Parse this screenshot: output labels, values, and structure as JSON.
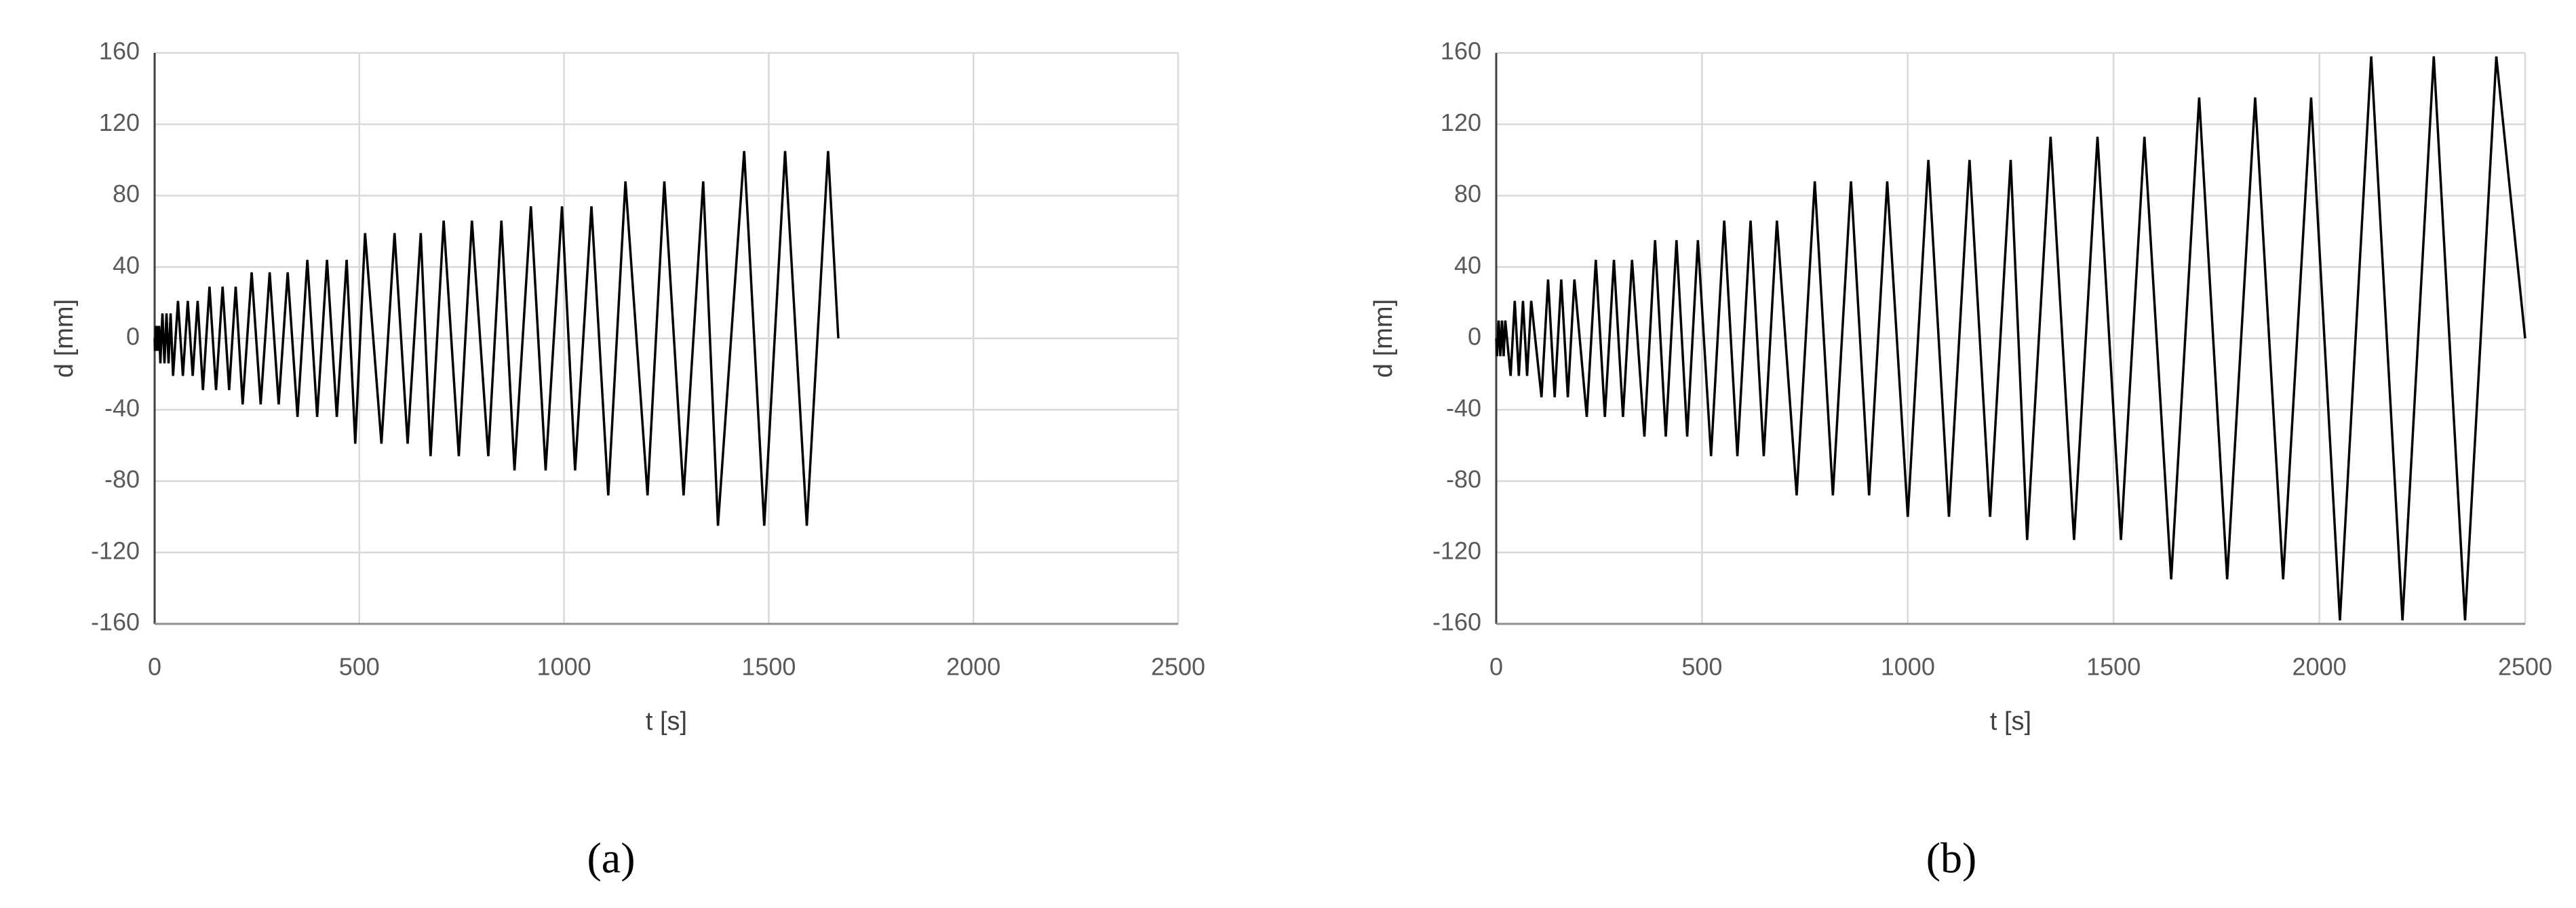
{
  "chart_data": [
    {
      "type": "line",
      "panel_label": "(a)",
      "xlabel": "t [s]",
      "ylabel": "d [mm]",
      "color": "#000000",
      "grid": true,
      "xlim": [
        0,
        2500
      ],
      "ylim": [
        -160,
        160
      ],
      "xticks": [
        0,
        500,
        1000,
        1500,
        2000,
        2500
      ],
      "yticks": [
        -160,
        -120,
        -80,
        -40,
        0,
        40,
        80,
        120,
        160
      ],
      "x": [
        0,
        1,
        3,
        5,
        7,
        9,
        11,
        14,
        19,
        24,
        29,
        34,
        39,
        45,
        57,
        69,
        81,
        93,
        105,
        118,
        134,
        150,
        166,
        182,
        198,
        215,
        237,
        259,
        281,
        303,
        325,
        349,
        373,
        397,
        421,
        445,
        469,
        490,
        514,
        554,
        586,
        618,
        650,
        674,
        706,
        743,
        775,
        815,
        847,
        879,
        919,
        955,
        995,
        1027,
        1067,
        1108,
        1150,
        1204,
        1245,
        1292,
        1340,
        1376,
        1440,
        1489,
        1540,
        1593,
        1645,
        1670
      ],
      "values": [
        0,
        -7,
        7,
        -7,
        7,
        -7,
        7,
        -14,
        14,
        -14,
        14,
        -14,
        14,
        -21,
        21,
        -21,
        21,
        -21,
        21,
        -29,
        29,
        -29,
        29,
        -29,
        29,
        -37,
        37,
        -37,
        37,
        -37,
        37,
        -44,
        44,
        -44,
        44,
        -44,
        44,
        -59,
        59,
        -59,
        59,
        -59,
        59,
        -66,
        66,
        -66,
        66,
        -66,
        66,
        -74,
        74,
        -74,
        74,
        -74,
        74,
        -88,
        88,
        -88,
        88,
        -88,
        88,
        -105,
        105,
        -105,
        105,
        -105,
        105,
        0
      ]
    },
    {
      "type": "line",
      "panel_label": "(b)",
      "xlabel": "t [s]",
      "ylabel": "d [mm]",
      "color": "#000000",
      "grid": true,
      "xlim": [
        0,
        2500
      ],
      "ylim": [
        -160,
        160
      ],
      "xticks": [
        0,
        500,
        1000,
        1500,
        2000,
        2500
      ],
      "yticks": [
        -160,
        -120,
        -80,
        -40,
        0,
        40,
        80,
        120,
        160
      ],
      "x": [
        0,
        2,
        6,
        10,
        14,
        18,
        22,
        35,
        45,
        55,
        65,
        75,
        85,
        110,
        126,
        142,
        158,
        174,
        190,
        220,
        242,
        264,
        286,
        308,
        330,
        360,
        386,
        412,
        438,
        464,
        490,
        522,
        554,
        586,
        618,
        650,
        682,
        730,
        774,
        818,
        862,
        906,
        950,
        1000,
        1050,
        1100,
        1150,
        1200,
        1250,
        1290,
        1347,
        1404,
        1461,
        1518,
        1575,
        1640,
        1708,
        1776,
        1844,
        1912,
        1980,
        2050,
        2126,
        2202,
        2278,
        2354,
        2430,
        2500
      ],
      "values": [
        0,
        -10,
        10,
        -10,
        10,
        -10,
        10,
        -21,
        21,
        -21,
        21,
        -21,
        21,
        -33,
        33,
        -33,
        33,
        -33,
        33,
        -44,
        44,
        -44,
        44,
        -44,
        44,
        -55,
        55,
        -55,
        55,
        -55,
        55,
        -66,
        66,
        -66,
        66,
        -66,
        66,
        -88,
        88,
        -88,
        88,
        -88,
        88,
        -100,
        100,
        -100,
        100,
        -100,
        100,
        -113,
        113,
        -113,
        113,
        -113,
        113,
        -135,
        135,
        -135,
        135,
        -135,
        135,
        -158,
        158,
        -158,
        158,
        -158,
        158,
        0
      ]
    }
  ]
}
